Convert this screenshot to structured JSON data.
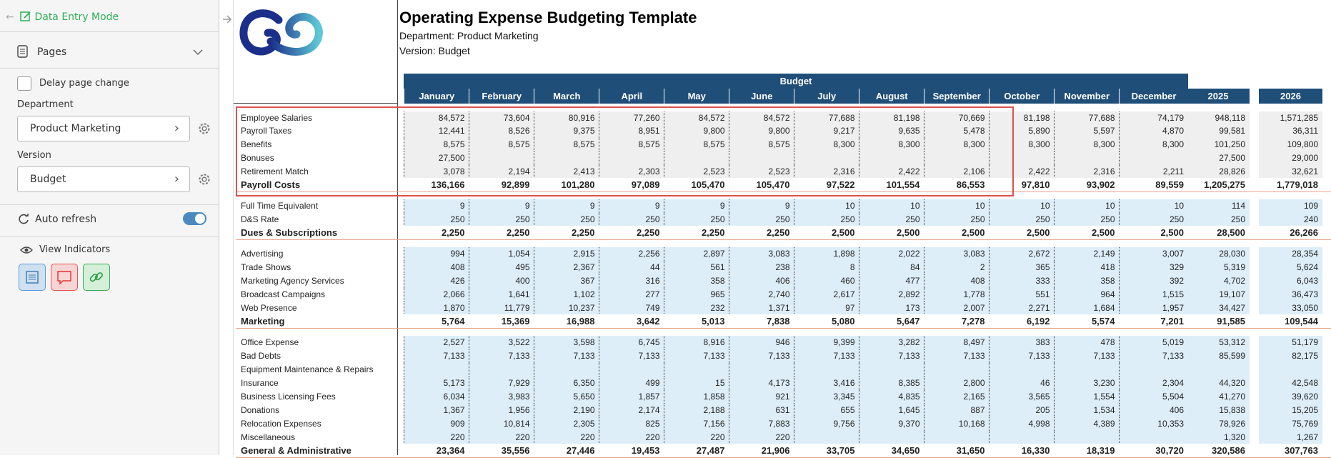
{
  "panel": {
    "mode_label": "Data Entry Mode",
    "pages_label": "Pages",
    "delay_label": "Delay page change",
    "department_label": "Department",
    "department_value": "Product Marketing",
    "version_label": "Version",
    "version_value": "Budget",
    "auto_refresh_label": "Auto refresh",
    "view_indicators_label": "View Indicators",
    "accent": "#2fae57"
  },
  "report": {
    "title": "Operating Expense Budgeting Template",
    "department_line": "Department: Product Marketing",
    "version_line": "Version: Budget",
    "budget_header": "Budget",
    "months": [
      "January",
      "February",
      "March",
      "April",
      "May",
      "June",
      "July",
      "August",
      "September",
      "October",
      "November",
      "December"
    ],
    "years": [
      "2025",
      "2026"
    ],
    "header_color": "#1f4e79"
  },
  "rows": [
    {
      "label": "Employee Salaries",
      "bold": false,
      "shade": "gray",
      "m": [
        "84,572",
        "73,604",
        "80,916",
        "77,260",
        "84,572",
        "84,572",
        "77,688",
        "81,198",
        "70,669",
        "81,198",
        "77,688",
        "74,179"
      ],
      "y": [
        "948,118",
        "1,571,285"
      ]
    },
    {
      "label": "Payroll Taxes",
      "bold": false,
      "shade": "gray",
      "m": [
        "12,441",
        "8,526",
        "9,375",
        "8,951",
        "9,800",
        "9,800",
        "9,217",
        "9,635",
        "5,478",
        "5,890",
        "5,597",
        "4,870"
      ],
      "y": [
        "99,581",
        "36,311"
      ]
    },
    {
      "label": "Benefits",
      "bold": false,
      "shade": "gray",
      "m": [
        "8,575",
        "8,575",
        "8,575",
        "8,575",
        "8,575",
        "8,575",
        "8,300",
        "8,300",
        "8,300",
        "8,300",
        "8,300",
        "8,300"
      ],
      "y": [
        "101,250",
        "109,800"
      ]
    },
    {
      "label": "Bonuses",
      "bold": false,
      "shade": "gray",
      "m": [
        "27,500",
        "",
        "",
        "",
        "",
        "",
        "",
        "",
        "",
        "",
        "",
        ""
      ],
      "y": [
        "27,500",
        "29,000"
      ]
    },
    {
      "label": "Retirement Match",
      "bold": false,
      "shade": "gray",
      "m": [
        "3,078",
        "2,194",
        "2,413",
        "2,303",
        "2,523",
        "2,523",
        "2,316",
        "2,422",
        "2,106",
        "2,422",
        "2,316",
        "2,211"
      ],
      "y": [
        "28,826",
        "32,621"
      ]
    },
    {
      "label": "Payroll Costs",
      "bold": true,
      "shade": "none",
      "m": [
        "136,166",
        "92,899",
        "101,280",
        "97,089",
        "105,470",
        "105,470",
        "97,522",
        "101,554",
        "86,553",
        "97,810",
        "93,902",
        "89,559"
      ],
      "y": [
        "1,205,275",
        "1,779,018"
      ]
    },
    {
      "label": "Full Time Equivalent",
      "bold": false,
      "shade": "blue",
      "m": [
        "9",
        "9",
        "9",
        "9",
        "9",
        "9",
        "10",
        "10",
        "10",
        "10",
        "10",
        "10"
      ],
      "y": [
        "114",
        "109"
      ]
    },
    {
      "label": "D&S Rate",
      "bold": false,
      "shade": "blue",
      "m": [
        "250",
        "250",
        "250",
        "250",
        "250",
        "250",
        "250",
        "250",
        "250",
        "250",
        "250",
        "250"
      ],
      "y": [
        "250",
        "240"
      ]
    },
    {
      "label": "Dues & Subscriptions",
      "bold": true,
      "shade": "none",
      "m": [
        "2,250",
        "2,250",
        "2,250",
        "2,250",
        "2,250",
        "2,250",
        "2,500",
        "2,500",
        "2,500",
        "2,500",
        "2,500",
        "2,500"
      ],
      "y": [
        "28,500",
        "26,266"
      ]
    },
    {
      "label": "Advertising",
      "bold": false,
      "shade": "blue",
      "m": [
        "994",
        "1,054",
        "2,915",
        "2,256",
        "2,897",
        "3,083",
        "1,898",
        "2,022",
        "3,083",
        "2,672",
        "2,149",
        "3,007"
      ],
      "y": [
        "28,030",
        "28,354"
      ]
    },
    {
      "label": "Trade Shows",
      "bold": false,
      "shade": "blue",
      "m": [
        "408",
        "495",
        "2,367",
        "44",
        "561",
        "238",
        "8",
        "84",
        "2",
        "365",
        "418",
        "329"
      ],
      "y": [
        "5,319",
        "5,624"
      ]
    },
    {
      "label": "Marketing Agency Services",
      "bold": false,
      "shade": "blue",
      "m": [
        "426",
        "400",
        "367",
        "316",
        "358",
        "406",
        "460",
        "477",
        "408",
        "333",
        "358",
        "392"
      ],
      "y": [
        "4,702",
        "6,043"
      ]
    },
    {
      "label": "Broadcast Campaigns",
      "bold": false,
      "shade": "blue",
      "m": [
        "2,066",
        "1,641",
        "1,102",
        "277",
        "965",
        "2,740",
        "2,617",
        "2,892",
        "1,778",
        "551",
        "964",
        "1,515"
      ],
      "y": [
        "19,107",
        "36,473"
      ]
    },
    {
      "label": "Web Presence",
      "bold": false,
      "shade": "blue",
      "m": [
        "1,870",
        "11,779",
        "10,237",
        "749",
        "232",
        "1,371",
        "97",
        "173",
        "2,007",
        "2,271",
        "1,684",
        "1,957"
      ],
      "y": [
        "34,427",
        "33,050"
      ]
    },
    {
      "label": "Marketing",
      "bold": true,
      "shade": "none",
      "m": [
        "5,764",
        "15,369",
        "16,988",
        "3,642",
        "5,013",
        "7,838",
        "5,080",
        "5,647",
        "7,278",
        "6,192",
        "5,574",
        "7,201"
      ],
      "y": [
        "91,585",
        "109,544"
      ]
    },
    {
      "label": "Office Expense",
      "bold": false,
      "shade": "blue",
      "m": [
        "2,527",
        "3,522",
        "3,598",
        "6,745",
        "8,916",
        "946",
        "9,399",
        "3,282",
        "8,497",
        "383",
        "478",
        "5,019"
      ],
      "y": [
        "53,312",
        "51,179"
      ]
    },
    {
      "label": "Bad Debts",
      "bold": false,
      "shade": "blue",
      "m": [
        "7,133",
        "7,133",
        "7,133",
        "7,133",
        "7,133",
        "7,133",
        "7,133",
        "7,133",
        "7,133",
        "7,133",
        "7,133",
        "7,133"
      ],
      "y": [
        "85,599",
        "82,175"
      ]
    },
    {
      "label": "Equipment Maintenance & Repairs",
      "bold": false,
      "shade": "blue",
      "m": [
        "",
        "",
        "",
        "",
        "",
        "",
        "",
        "",
        "",
        "",
        "",
        ""
      ],
      "y": [
        "",
        ""
      ]
    },
    {
      "label": "Insurance",
      "bold": false,
      "shade": "blue",
      "m": [
        "5,173",
        "7,929",
        "6,350",
        "499",
        "15",
        "4,173",
        "3,416",
        "8,385",
        "2,800",
        "46",
        "3,230",
        "2,304"
      ],
      "y": [
        "44,320",
        "42,548"
      ]
    },
    {
      "label": "Business Licensing Fees",
      "bold": false,
      "shade": "blue",
      "m": [
        "6,034",
        "3,983",
        "5,650",
        "1,857",
        "1,858",
        "921",
        "3,345",
        "4,835",
        "2,165",
        "3,565",
        "1,554",
        "5,504"
      ],
      "y": [
        "41,270",
        "39,620"
      ]
    },
    {
      "label": "Donations",
      "bold": false,
      "shade": "blue",
      "m": [
        "1,367",
        "1,956",
        "2,190",
        "2,174",
        "2,188",
        "631",
        "655",
        "1,645",
        "887",
        "205",
        "1,534",
        "406"
      ],
      "y": [
        "15,838",
        "15,205"
      ]
    },
    {
      "label": "Relocation Expenses",
      "bold": false,
      "shade": "blue",
      "m": [
        "909",
        "10,814",
        "2,305",
        "825",
        "7,156",
        "7,883",
        "9,756",
        "9,370",
        "10,168",
        "4,998",
        "4,389",
        "10,353"
      ],
      "y": [
        "78,926",
        "75,769"
      ]
    },
    {
      "label": "Miscellaneous",
      "bold": false,
      "shade": "blue",
      "m": [
        "220",
        "220",
        "220",
        "220",
        "220",
        "220",
        "",
        "",
        "",
        "",
        "",
        ""
      ],
      "y": [
        "1,320",
        "1,267"
      ]
    },
    {
      "label": "General & Administrative",
      "bold": true,
      "shade": "none",
      "m": [
        "23,364",
        "35,556",
        "27,446",
        "19,453",
        "27,487",
        "21,906",
        "33,705",
        "34,650",
        "31,650",
        "16,330",
        "18,319",
        "30,720"
      ],
      "y": [
        "320,586",
        "307,763"
      ]
    }
  ]
}
